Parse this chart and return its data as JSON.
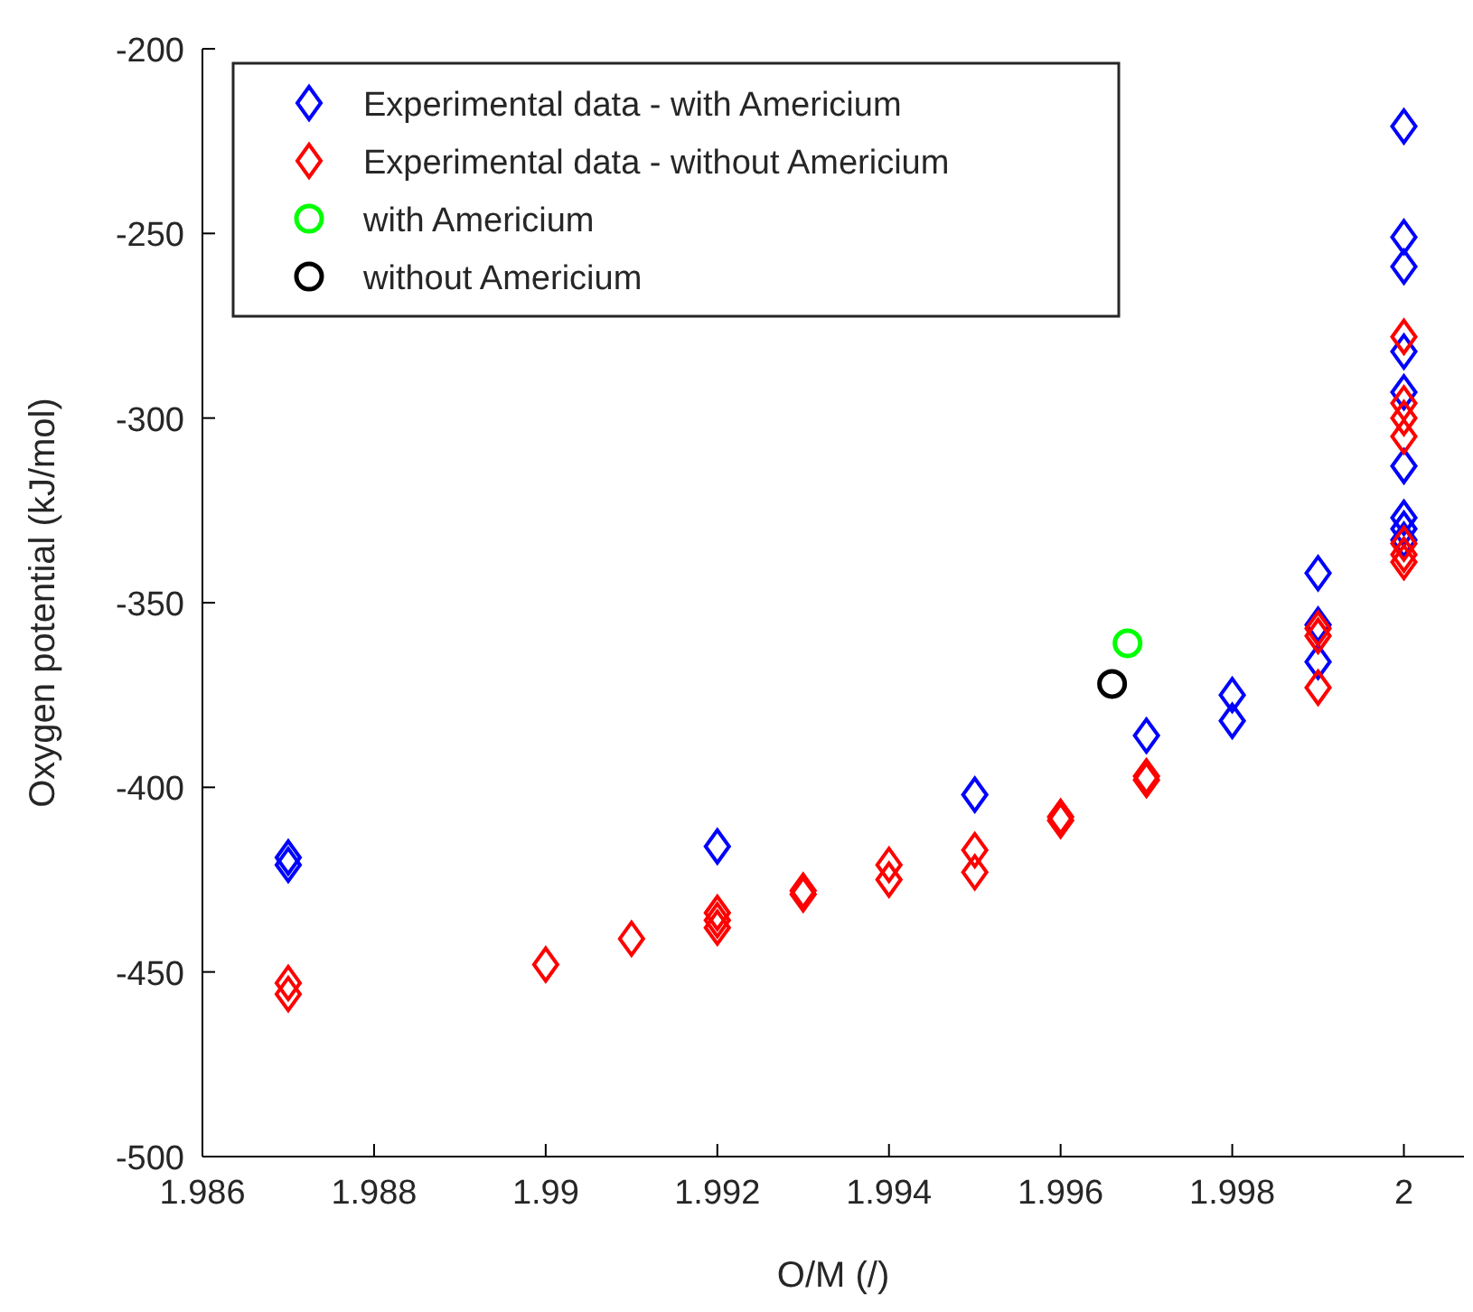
{
  "chart_data": {
    "type": "scatter",
    "xlabel": "O/M (/)",
    "ylabel": "Oxygen potential (kJ/mol)",
    "xlim": [
      1.986,
      2.0007
    ],
    "ylim": [
      -500,
      -200
    ],
    "xticks": [
      1.986,
      1.988,
      1.99,
      1.992,
      1.994,
      1.996,
      1.998,
      2
    ],
    "yticks": [
      -500,
      -450,
      -400,
      -350,
      -300,
      -250,
      -200
    ],
    "grid": false,
    "legend": "top left",
    "series": [
      {
        "name": "Experimental data - with Americium",
        "color": "#0000ff",
        "marker": "diamond",
        "x": [
          1.987,
          1.987,
          1.992,
          1.995,
          1.997,
          1.998,
          1.998,
          1.999,
          1.999,
          1.999,
          2,
          2,
          2,
          2,
          2,
          2,
          2,
          2,
          2
        ],
        "values": [
          -419,
          -421,
          -416,
          -402,
          -386,
          -375,
          -382,
          -342,
          -356,
          -366,
          -221,
          -251,
          -259,
          -282,
          -293,
          -313,
          -327,
          -330,
          -333
        ]
      },
      {
        "name": "Experimental data - without Americium",
        "color": "#ff0000",
        "marker": "diamond",
        "x": [
          1.987,
          1.987,
          1.99,
          1.991,
          1.992,
          1.992,
          1.992,
          1.993,
          1.993,
          1.994,
          1.994,
          1.995,
          1.995,
          1.996,
          1.996,
          1.997,
          1.997,
          1.999,
          1.999,
          1.999,
          2,
          2,
          2,
          2,
          2,
          2,
          2
        ],
        "values": [
          -453,
          -456,
          -448,
          -441,
          -434,
          -436,
          -438,
          -428,
          -429,
          -421,
          -425,
          -417,
          -423,
          -408,
          -409,
          -397,
          -398,
          -357,
          -359,
          -373,
          -278,
          -296,
          -300,
          -305,
          -334,
          -337,
          -339
        ]
      },
      {
        "name": "with Americium",
        "color": "#00ff00",
        "marker": "circle",
        "x": [
          1.99678
        ],
        "values": [
          -361
        ]
      },
      {
        "name": "without Americium",
        "color": "#000000",
        "marker": "circle",
        "x": [
          1.9966
        ],
        "values": [
          -372
        ]
      }
    ]
  }
}
